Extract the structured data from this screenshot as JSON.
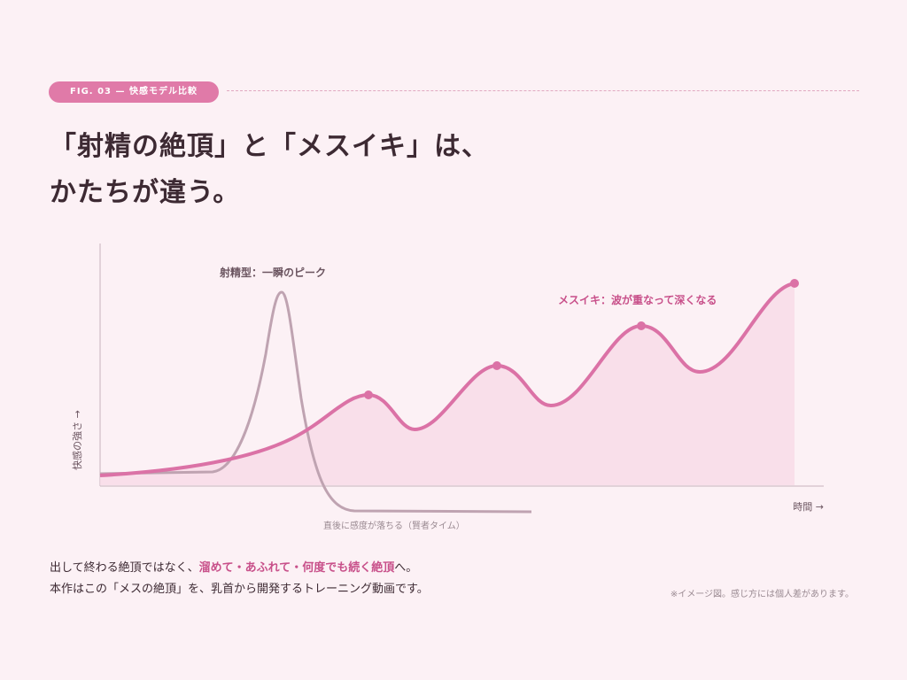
{
  "figure_tag": "FIG. 03 — 快感モデル比較",
  "title": [
    "「射精の絶頂」と「メスイキ」は、",
    "かたちが違う。"
  ],
  "diagram": {
    "ejaculation_label": "射精型：一瞬のピーク",
    "mesuiki_label": "メスイキ：波が重なって深くなる",
    "after_label": "直後に感度が落ちる（賢者タイム）",
    "y_axis_label": "快感の強さ →",
    "x_axis_label": "時間 →"
  },
  "body": [
    [
      "出して終わる絶頂ではなく、",
      "溜めて・あふれて・何度でも続く絶頂",
      "へ。"
    ],
    "本作はこの「メスの絶頂」を、乳首から開発するトレーニング動画です。"
  ],
  "note": "※イメージ図。感じ方には個人差があります。"
}
